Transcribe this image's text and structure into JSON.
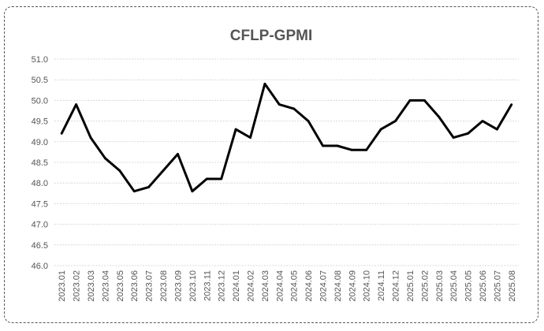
{
  "chart_data": {
    "type": "line",
    "title": "CFLP-GPMI",
    "xlabel": "",
    "ylabel": "",
    "ylim": [
      46.0,
      51.0
    ],
    "y_ticks": [
      "51.0",
      "50.5",
      "50.0",
      "49.5",
      "49.0",
      "48.5",
      "48.0",
      "47.5",
      "47.0",
      "46.5",
      "46.0"
    ],
    "grid": true,
    "legend": "none",
    "line_color": "#000000",
    "categories": [
      "2023.01",
      "2023.02",
      "2023.03",
      "2023.04",
      "2023.05",
      "2023.06",
      "2023.07",
      "2023.08",
      "2023.09",
      "2023.10",
      "2023.11",
      "2023.12",
      "2024.01",
      "2024.02",
      "2024.03",
      "2024.04",
      "2024.05",
      "2024.06",
      "2024.07",
      "2024.08",
      "2024.09",
      "2024.10",
      "2024.11",
      "2024.12",
      "2025.01",
      "2025.02",
      "2025.03",
      "2025.04",
      "2025.05",
      "2025.06",
      "2025.07",
      "2025.08"
    ],
    "series": [
      {
        "values": [
          49.2,
          49.9,
          49.1,
          48.6,
          48.3,
          47.8,
          47.9,
          48.3,
          48.7,
          47.8,
          48.1,
          48.1,
          49.3,
          49.1,
          50.4,
          49.9,
          49.8,
          49.5,
          48.9,
          48.9,
          48.8,
          48.8,
          49.3,
          49.5,
          50.0,
          50.0,
          49.6,
          49.1,
          49.2,
          49.5,
          49.3,
          49.9
        ]
      }
    ]
  }
}
